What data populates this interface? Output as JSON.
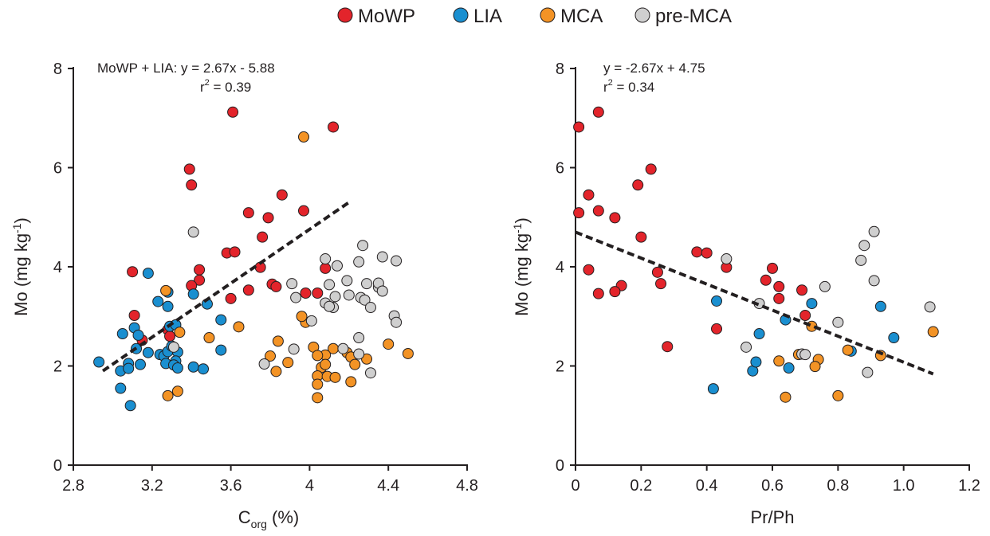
{
  "legend": {
    "placement": "top-center",
    "items": [
      {
        "label": "MoWP",
        "color": "#e3242b"
      },
      {
        "label": "LIA",
        "color": "#1a8fd0"
      },
      {
        "label": "MCA",
        "color": "#f39325"
      },
      {
        "label": "pre-MCA",
        "color": "#cfcfcf"
      }
    ]
  },
  "chart_data": [
    {
      "type": "scatter",
      "xlabel": {
        "main": "C",
        "sub": "org",
        "rest": " (%)"
      },
      "ylabel": {
        "main": "Mo (mg kg",
        "sup": "-1",
        "rest": ")"
      },
      "xlim": [
        2.8,
        4.8
      ],
      "ylim": [
        0,
        8
      ],
      "xticks": [
        2.8,
        3.2,
        3.6,
        4,
        4.4,
        4.8
      ],
      "xtick_labels": [
        "2.8",
        "3.2",
        "3.6",
        "4",
        "4.4",
        "4.8"
      ],
      "yticks": [
        0,
        2,
        4,
        6,
        8
      ],
      "ytick_labels": [
        "0",
        "2",
        "4",
        "6",
        "8"
      ],
      "grid": false,
      "annotation": {
        "line1": "MoWP + LIA: y = 2.67x - 5.88",
        "r_prefix": "r",
        "r_sup": "2",
        "r_value": " = 0.39"
      },
      "trendline": {
        "x": [
          2.95,
          4.2
        ],
        "y": [
          1.9,
          5.3
        ],
        "style": "dashed"
      },
      "series": [
        {
          "name": "MoWP",
          "color": "#e3242b",
          "points": [
            [
              3.61,
              7.12
            ],
            [
              4.12,
              6.82
            ],
            [
              3.39,
              5.97
            ],
            [
              3.4,
              5.65
            ],
            [
              3.86,
              5.45
            ],
            [
              3.69,
              5.09
            ],
            [
              3.97,
              5.13
            ],
            [
              3.79,
              4.99
            ],
            [
              3.76,
              4.6
            ],
            [
              3.58,
              4.28
            ],
            [
              3.62,
              4.3
            ],
            [
              3.75,
              3.99
            ],
            [
              3.44,
              3.94
            ],
            [
              4.08,
              3.97
            ],
            [
              3.44,
              3.73
            ],
            [
              3.4,
              3.62
            ],
            [
              3.81,
              3.65
            ],
            [
              3.83,
              3.6
            ],
            [
              3.69,
              3.53
            ],
            [
              3.98,
              3.47
            ],
            [
              4.04,
              3.47
            ],
            [
              3.6,
              3.36
            ],
            [
              3.1,
              3.9
            ],
            [
              3.11,
              3.02
            ],
            [
              3.28,
              2.73
            ],
            [
              3.29,
              2.6
            ],
            [
              3.15,
              2.52
            ]
          ]
        },
        {
          "name": "LIA",
          "color": "#1a8fd0",
          "points": [
            [
              3.18,
              3.87
            ],
            [
              3.28,
              3.49
            ],
            [
              3.41,
              3.45
            ],
            [
              3.28,
              3.2
            ],
            [
              3.48,
              3.25
            ],
            [
              3.23,
              3.3
            ],
            [
              3.11,
              2.77
            ],
            [
              3.05,
              2.65
            ],
            [
              3.13,
              2.62
            ],
            [
              3.55,
              2.93
            ],
            [
              3.29,
              2.8
            ],
            [
              3.32,
              2.83
            ],
            [
              3.12,
              2.35
            ],
            [
              3.18,
              2.27
            ],
            [
              3.24,
              2.23
            ],
            [
              3.26,
              2.2
            ],
            [
              3.28,
              2.29
            ],
            [
              3.3,
              2.4
            ],
            [
              3.33,
              2.28
            ],
            [
              3.55,
              2.32
            ],
            [
              3.32,
              2.1
            ],
            [
              2.93,
              2.08
            ],
            [
              3.08,
              2.05
            ],
            [
              3.14,
              2.03
            ],
            [
              3.04,
              1.9
            ],
            [
              3.08,
              1.95
            ],
            [
              3.27,
              2.05
            ],
            [
              3.31,
              2.02
            ],
            [
              3.33,
              1.96
            ],
            [
              3.41,
              1.98
            ],
            [
              3.46,
              1.94
            ],
            [
              3.04,
              1.55
            ],
            [
              3.09,
              1.2
            ]
          ]
        },
        {
          "name": "MCA",
          "color": "#f39325",
          "points": [
            [
              3.97,
              6.62
            ],
            [
              3.27,
              3.52
            ],
            [
              3.98,
              2.88
            ],
            [
              3.96,
              3.0
            ],
            [
              3.64,
              2.79
            ],
            [
              3.34,
              2.68
            ],
            [
              3.49,
              2.57
            ],
            [
              3.84,
              2.5
            ],
            [
              4.4,
              2.44
            ],
            [
              4.02,
              2.38
            ],
            [
              4.12,
              2.35
            ],
            [
              4.29,
              2.14
            ],
            [
              3.8,
              2.2
            ],
            [
              4.08,
              2.22
            ],
            [
              4.04,
              2.21
            ],
            [
              4.19,
              2.27
            ],
            [
              4.5,
              2.25
            ],
            [
              4.21,
              2.18
            ],
            [
              3.89,
              2.07
            ],
            [
              4.23,
              2.03
            ],
            [
              4.06,
              1.97
            ],
            [
              4.08,
              2.03
            ],
            [
              3.83,
              1.89
            ],
            [
              4.04,
              1.8
            ],
            [
              4.09,
              1.79
            ],
            [
              4.13,
              1.77
            ],
            [
              4.21,
              1.68
            ],
            [
              4.04,
              1.63
            ],
            [
              3.28,
              1.4
            ],
            [
              3.33,
              1.49
            ],
            [
              4.04,
              1.36
            ]
          ]
        },
        {
          "name": "pre-MCA",
          "color": "#cfcfcf",
          "points": [
            [
              3.41,
              4.7
            ],
            [
              4.27,
              4.43
            ],
            [
              4.37,
              4.2
            ],
            [
              4.44,
              4.12
            ],
            [
              4.08,
              4.16
            ],
            [
              4.25,
              4.1
            ],
            [
              4.14,
              4.02
            ],
            [
              4.19,
              3.72
            ],
            [
              4.29,
              3.66
            ],
            [
              4.1,
              3.64
            ],
            [
              4.35,
              3.59
            ],
            [
              4.35,
              3.67
            ],
            [
              4.37,
              3.51
            ],
            [
              3.91,
              3.66
            ],
            [
              4.2,
              3.43
            ],
            [
              4.26,
              3.38
            ],
            [
              4.28,
              3.33
            ],
            [
              3.93,
              3.38
            ],
            [
              4.13,
              3.4
            ],
            [
              4.08,
              3.27
            ],
            [
              4.12,
              3.18
            ],
            [
              4.1,
              3.2
            ],
            [
              4.31,
              3.18
            ],
            [
              4.43,
              3.01
            ],
            [
              4.44,
              2.88
            ],
            [
              4.01,
              2.91
            ],
            [
              4.25,
              2.57
            ],
            [
              4.17,
              2.35
            ],
            [
              4.25,
              2.24
            ],
            [
              3.92,
              2.34
            ],
            [
              3.77,
              2.04
            ],
            [
              4.31,
              1.86
            ],
            [
              3.31,
              2.38
            ]
          ]
        }
      ]
    },
    {
      "type": "scatter",
      "xlabel": {
        "main": "Pr/Ph",
        "sub": "",
        "rest": ""
      },
      "ylabel": {
        "main": "Mo (mg kg",
        "sup": "-1",
        "rest": ")"
      },
      "xlim": [
        0,
        1.2
      ],
      "ylim": [
        0,
        8
      ],
      "xticks": [
        0,
        0.2,
        0.4,
        0.6,
        0.8,
        1.0,
        1.2
      ],
      "xtick_labels": [
        "0",
        "0.2",
        "0.4",
        "0.6",
        "0.8",
        "1.0",
        "1.2"
      ],
      "yticks": [
        0,
        2,
        4,
        6,
        8
      ],
      "ytick_labels": [
        "0",
        "2",
        "4",
        "6",
        "8"
      ],
      "grid": false,
      "annotation": {
        "line1": "y = -2.67x + 4.75",
        "r_prefix": "r",
        "r_sup": "2",
        "r_value": " = 0.34"
      },
      "trendline": {
        "x": [
          0.0,
          1.09
        ],
        "y": [
          4.7,
          1.84
        ],
        "style": "dashed"
      },
      "series": [
        {
          "name": "MoWP",
          "color": "#e3242b",
          "points": [
            [
              0.07,
              7.12
            ],
            [
              0.01,
              6.82
            ],
            [
              0.23,
              5.97
            ],
            [
              0.19,
              5.65
            ],
            [
              0.04,
              5.45
            ],
            [
              0.01,
              5.09
            ],
            [
              0.07,
              5.13
            ],
            [
              0.12,
              4.99
            ],
            [
              0.2,
              4.6
            ],
            [
              0.37,
              4.3
            ],
            [
              0.4,
              4.28
            ],
            [
              0.6,
              3.97
            ],
            [
              0.04,
              3.94
            ],
            [
              0.46,
              3.99
            ],
            [
              0.25,
              3.89
            ],
            [
              0.58,
              3.73
            ],
            [
              0.26,
              3.66
            ],
            [
              0.14,
              3.62
            ],
            [
              0.62,
              3.6
            ],
            [
              0.69,
              3.53
            ],
            [
              0.12,
              3.5
            ],
            [
              0.07,
              3.46
            ],
            [
              0.62,
              3.36
            ],
            [
              0.7,
              3.02
            ],
            [
              0.43,
              2.75
            ],
            [
              0.28,
              2.39
            ]
          ]
        },
        {
          "name": "LIA",
          "color": "#1a8fd0",
          "points": [
            [
              0.43,
              3.31
            ],
            [
              0.72,
              3.26
            ],
            [
              0.93,
              3.2
            ],
            [
              0.64,
              2.93
            ],
            [
              0.56,
              2.65
            ],
            [
              0.97,
              2.57
            ],
            [
              0.84,
              2.3
            ],
            [
              0.54,
              1.9
            ],
            [
              0.55,
              2.08
            ],
            [
              0.65,
              1.96
            ],
            [
              0.42,
              1.54
            ]
          ]
        },
        {
          "name": "MCA",
          "color": "#f39325",
          "points": [
            [
              0.72,
              2.8
            ],
            [
              1.09,
              2.69
            ],
            [
              0.83,
              2.32
            ],
            [
              0.68,
              2.23
            ],
            [
              0.74,
              2.13
            ],
            [
              0.62,
              2.1
            ],
            [
              0.73,
              1.99
            ],
            [
              0.64,
              1.37
            ],
            [
              0.8,
              1.4
            ],
            [
              0.93,
              2.21
            ]
          ]
        },
        {
          "name": "pre-MCA",
          "color": "#cfcfcf",
          "points": [
            [
              0.91,
              4.71
            ],
            [
              0.88,
              4.43
            ],
            [
              0.87,
              4.13
            ],
            [
              0.46,
              4.16
            ],
            [
              0.91,
              3.72
            ],
            [
              0.76,
              3.6
            ],
            [
              0.56,
              3.26
            ],
            [
              1.08,
              3.19
            ],
            [
              0.8,
              2.88
            ],
            [
              0.52,
              2.38
            ],
            [
              0.69,
              2.24
            ],
            [
              0.7,
              2.23
            ],
            [
              0.89,
              1.87
            ]
          ]
        }
      ]
    }
  ]
}
